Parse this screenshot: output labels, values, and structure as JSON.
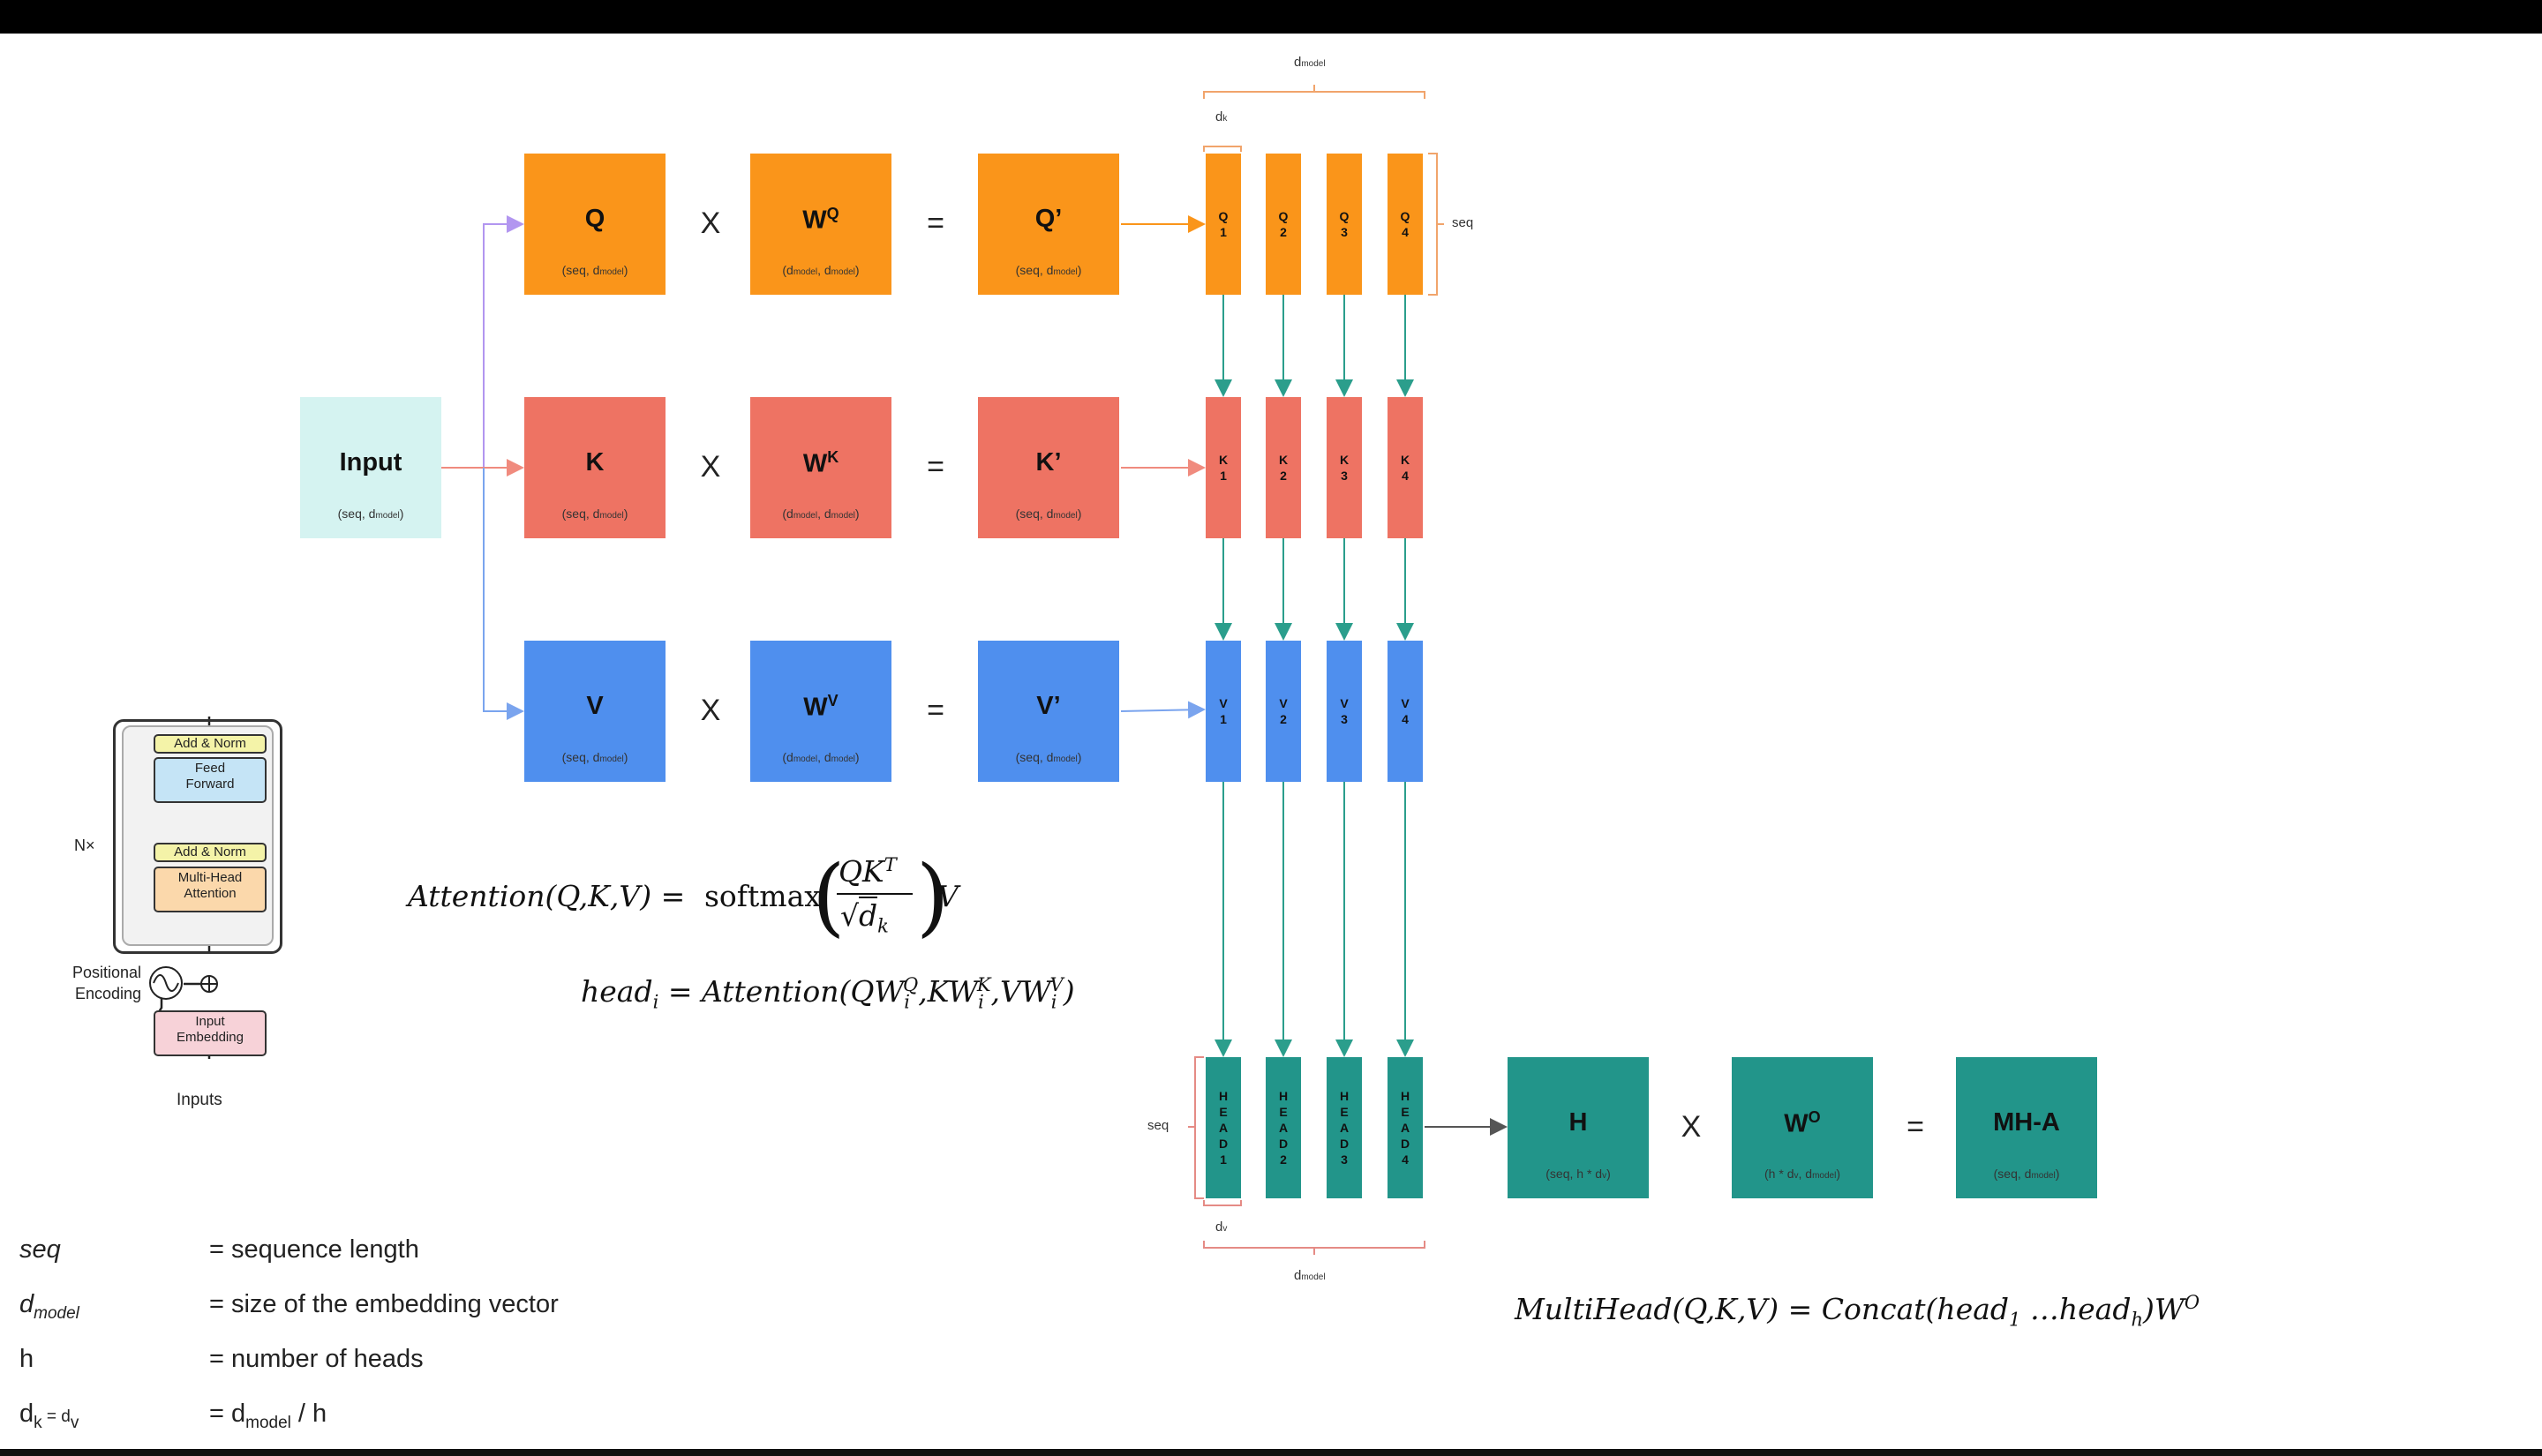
{
  "colors": {
    "query": "#fa951a",
    "key": "#ee7363",
    "value": "#4f8fee",
    "head": "#22958a",
    "input": "#d5f3f1",
    "bracket_q": "#f1a46b",
    "bracket_h": "#e58b85",
    "arrow_q": "#b296f0",
    "arrow_k": "#f08b7e",
    "arrow_v": "#7aa4ee",
    "arrow_head": "#2b9e8c"
  },
  "input": {
    "label": "Input",
    "dims": "(seq, d",
    "dims_sub": "model",
    "dims_end": ")"
  },
  "rows": [
    {
      "key": "q",
      "color_key": "query",
      "a": {
        "label": "Q",
        "dims": "(seq, d",
        "dims_sub": "model",
        "dims_end": ")"
      },
      "w": {
        "label": "W",
        "sup": "Q",
        "dims": "(d",
        "dims_sub1": "model",
        "dims_mid": ", d",
        "dims_sub2": "model",
        "dims_end": ")"
      },
      "r": {
        "label": "Q’",
        "dims": "(seq, d",
        "dims_sub": "model",
        "dims_end": ")"
      },
      "times": "X",
      "equals": "=",
      "cols": [
        "Q 1",
        "Q 2",
        "Q 3",
        "Q 4"
      ]
    },
    {
      "key": "k",
      "color_key": "key",
      "a": {
        "label": "K",
        "dims": "(seq, d",
        "dims_sub": "model",
        "dims_end": ")"
      },
      "w": {
        "label": "W",
        "sup": "K",
        "dims": "(d",
        "dims_sub1": "model",
        "dims_mid": ", d",
        "dims_sub2": "model",
        "dims_end": ")"
      },
      "r": {
        "label": "K’",
        "dims": "(seq, d",
        "dims_sub": "model",
        "dims_end": ")"
      },
      "times": "X",
      "equals": "=",
      "cols": [
        "K 1",
        "K 2",
        "K 3",
        "K 4"
      ]
    },
    {
      "key": "v",
      "color_key": "value",
      "a": {
        "label": "V",
        "dims": "(seq, d",
        "dims_sub": "model",
        "dims_end": ")"
      },
      "w": {
        "label": "W",
        "sup": "V",
        "dims": "(d",
        "dims_sub1": "model",
        "dims_mid": ", d",
        "dims_sub2": "model",
        "dims_end": ")"
      },
      "r": {
        "label": "V’",
        "dims": "(seq, d",
        "dims_sub": "model",
        "dims_end": ")"
      },
      "times": "X",
      "equals": "=",
      "cols": [
        "V 1",
        "V 2",
        "V 3",
        "V 4"
      ]
    }
  ],
  "heads": [
    "HEAD1",
    "HEAD2",
    "HEAD3",
    "HEAD4"
  ],
  "bottom_row": {
    "h": {
      "label": "H",
      "dims": "(seq, h * d",
      "dims_sub": "v",
      "dims_end": ")"
    },
    "wo": {
      "label": "W",
      "sup": "O",
      "dims": "(h * d",
      "dims_sub1": "v",
      "dims_mid": ", d",
      "dims_sub2": "model",
      "dims_end": ")"
    },
    "mha": {
      "label": "MH-A",
      "dims": "(seq, d",
      "dims_sub": "model",
      "dims_end": ")"
    },
    "times": "X",
    "equals": "="
  },
  "annotations": {
    "dmodel_top": "d",
    "dmodel_top_sub": "model",
    "dk": "d",
    "dk_sub": "k",
    "seq_q": "seq",
    "seq_h": "seq",
    "dv": "d",
    "dv_sub": "v",
    "dmodel_bottom": "d",
    "dmodel_bottom_sub": "model"
  },
  "formulas": {
    "attention": {
      "lhs": "Attention(Q,K,V) =",
      "fn": "softmax",
      "num": "QK",
      "num_sup": "T",
      "den": "d",
      "den_sub": "k",
      "tail": "V"
    },
    "head": {
      "text": "head",
      "sub": "i",
      "eq": "= Attention(QW",
      "q_sub": "i",
      "q_sup": "Q",
      "mid1": ",KW",
      "k_sub": "i",
      "k_sup": "K",
      "mid2": ",VW",
      "v_sub": "i",
      "v_sup": "V",
      "end": ")"
    },
    "multihead": {
      "lhs": "MultiHead(Q,K,V) = Concat(head",
      "sub1": "1",
      "mid": " …head",
      "subh": "h",
      "end": ")W",
      "sup": "O"
    }
  },
  "legend": [
    {
      "term": "seq",
      "term_sub": "",
      "def": "= sequence length"
    },
    {
      "term": "d",
      "term_sub": "model",
      "def": "= size of the embedding vector"
    },
    {
      "term": "h",
      "term_sub": "",
      "def": "= number of heads"
    },
    {
      "term": "d",
      "term_sub": "k",
      "term_mid": " = d",
      "term_sub2": "v",
      "def": "= d",
      "def_sub": "model",
      "def_end": " / h"
    }
  ],
  "mini_transformer": {
    "add_norm_top": "Add & Norm",
    "feed_forward_1": "Feed",
    "feed_forward_2": "Forward",
    "add_norm_bottom": "Add & Norm",
    "mha_1": "Multi-Head",
    "mha_2": "Attention",
    "nx": "N×",
    "pos_enc_1": "Positional",
    "pos_enc_2": "Encoding",
    "embedding_1": "Input",
    "embedding_2": "Embedding",
    "inputs": "Inputs"
  }
}
